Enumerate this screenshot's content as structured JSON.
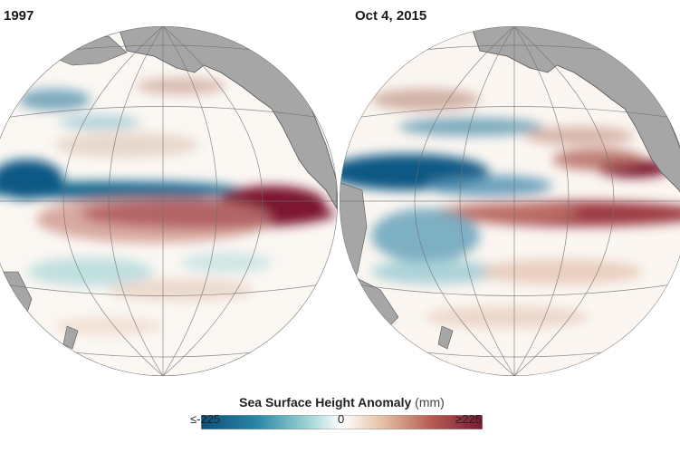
{
  "panels": [
    {
      "label": "1997"
    },
    {
      "label": "Oct 4, 2015"
    }
  ],
  "legend": {
    "title": "Sea Surface Height Anomaly",
    "unit": "(mm)",
    "min_label": "≤-225",
    "mid_label": "0",
    "max_label": "≥225",
    "colors": [
      "#0d4f7a",
      "#2a87a6",
      "#9fd4d6",
      "#ffffff",
      "#e6c2a6",
      "#b55b52",
      "#7a1a34"
    ]
  },
  "colors": {
    "land": "#a6a6a6",
    "ocean_neutral": "#ffffff",
    "negative_strong": "#0f5985",
    "positive_strong": "#7d1432"
  }
}
